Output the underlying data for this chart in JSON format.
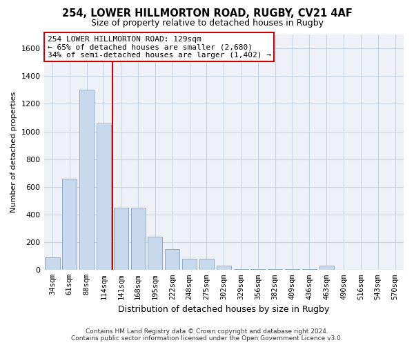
{
  "title1": "254, LOWER HILLMORTON ROAD, RUGBY, CV21 4AF",
  "title2": "Size of property relative to detached houses in Rugby",
  "xlabel": "Distribution of detached houses by size in Rugby",
  "ylabel": "Number of detached properties",
  "categories": [
    "34sqm",
    "61sqm",
    "88sqm",
    "114sqm",
    "141sqm",
    "168sqm",
    "195sqm",
    "222sqm",
    "248sqm",
    "275sqm",
    "302sqm",
    "329sqm",
    "356sqm",
    "382sqm",
    "409sqm",
    "436sqm",
    "463sqm",
    "490sqm",
    "516sqm",
    "543sqm",
    "570sqm"
  ],
  "values": [
    90,
    660,
    1300,
    1055,
    450,
    450,
    240,
    150,
    80,
    80,
    30,
    5,
    5,
    5,
    5,
    5,
    30,
    3,
    3,
    3,
    3
  ],
  "bar_color": "#c8d8ed",
  "bar_edge_color": "#8faecc",
  "grid_color": "#c8d4e4",
  "vline_x": 3.5,
  "vline_color": "#cc0000",
  "annotation_text": "254 LOWER HILLMORTON ROAD: 129sqm\n← 65% of detached houses are smaller (2,680)\n34% of semi-detached houses are larger (1,402) →",
  "annotation_box_color": "#ffffff",
  "annotation_box_edge": "#cc0000",
  "ylim": [
    0,
    1700
  ],
  "yticks": [
    0,
    200,
    400,
    600,
    800,
    1000,
    1200,
    1400,
    1600
  ],
  "footer": "Contains HM Land Registry data © Crown copyright and database right 2024.\nContains public sector information licensed under the Open Government Licence v3.0.",
  "bg_color": "#ffffff",
  "plot_bg_color": "#eef2f8"
}
